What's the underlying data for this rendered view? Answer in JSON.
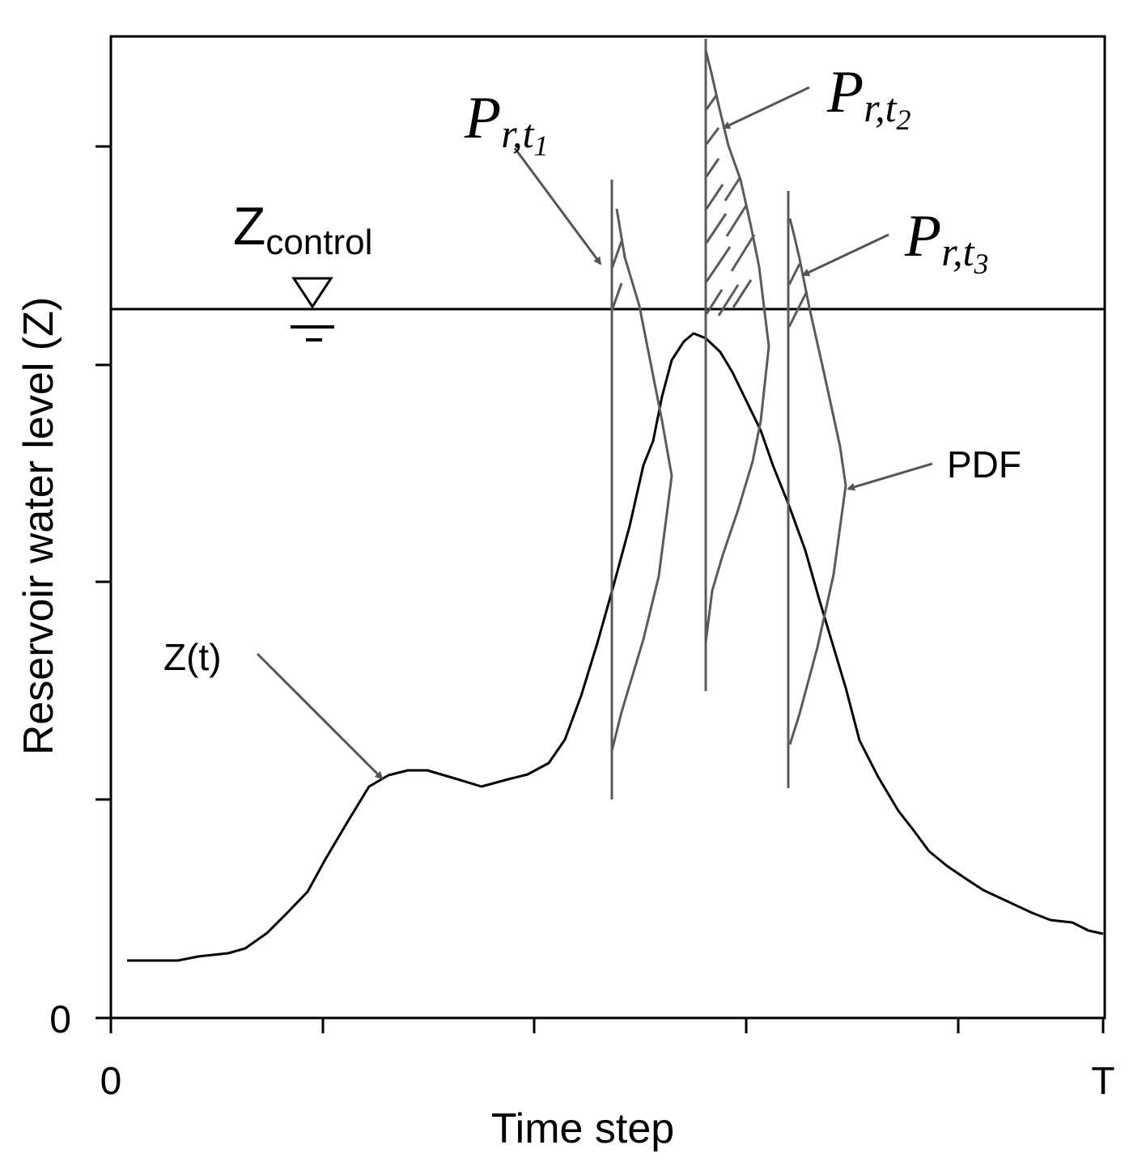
{
  "axes": {
    "y_label": "Reservoir water level (Z)",
    "x_label": "Time step",
    "y_tick_zero": "0",
    "x_tick_zero": "0",
    "x_tick_end": "T"
  },
  "control": {
    "symbol": "Z",
    "subscript": "control"
  },
  "curve_label": "Z(t)",
  "pdf_label": "PDF",
  "probabilities": [
    {
      "base": "P",
      "sub": "r,t",
      "subsub": "1"
    },
    {
      "base": "P",
      "sub": "r,t",
      "subsub": "2"
    },
    {
      "base": "P",
      "sub": "r,t",
      "subsub": "3"
    }
  ],
  "colors": {
    "axis": "#000000",
    "curve": "#000000",
    "pdf": "#5a5a5a",
    "arrow": "#555555"
  }
}
